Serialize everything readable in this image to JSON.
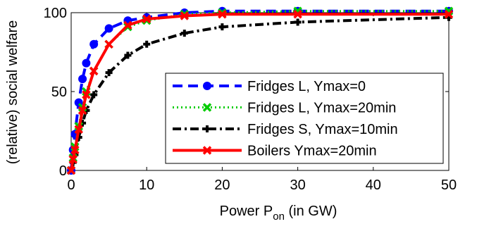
{
  "chart_data": {
    "type": "line",
    "title": "",
    "xlabel": {
      "main": "Power P",
      "subscript": "on",
      "suffix": " (in GW)"
    },
    "ylabel": "(relative) social welfare",
    "xlim": [
      0,
      50
    ],
    "ylim": [
      0,
      100
    ],
    "xticks": [
      0,
      10,
      20,
      30,
      40,
      50
    ],
    "yticks": [
      0,
      50,
      100
    ],
    "grid": false,
    "legend_position": "lower-right",
    "series": [
      {
        "name": "Fridges L, Ymax=0",
        "color": "#0000ff",
        "line_style": "dashed",
        "marker": "circle",
        "x": [
          0,
          0.25,
          0.5,
          1,
          1.5,
          2,
          3,
          5,
          7.5,
          10,
          15,
          20,
          30,
          50
        ],
        "y": [
          0,
          13,
          23,
          43,
          58,
          68,
          80,
          90,
          95,
          97,
          100,
          101,
          101,
          101
        ]
      },
      {
        "name": "Fridges L, Ymax=20min",
        "color": "#00cc00",
        "line_style": "dotted",
        "marker": "x",
        "x": [
          0,
          0.25,
          0.5,
          1,
          1.5,
          2,
          3,
          5,
          7.5,
          10,
          15,
          20,
          30,
          50
        ],
        "y": [
          0,
          8,
          15,
          28,
          40,
          50,
          63,
          80,
          91,
          95,
          99,
          100,
          101,
          101
        ]
      },
      {
        "name": "Fridges S, Ymax=10min",
        "color": "#000000",
        "line_style": "dashdot",
        "marker": "plus",
        "x": [
          0,
          0.25,
          0.5,
          1,
          1.5,
          2,
          3,
          5,
          7.5,
          10,
          15,
          20,
          30,
          50
        ],
        "y": [
          0,
          5,
          10,
          21,
          30,
          38,
          48,
          62,
          73,
          80,
          87,
          91,
          94,
          97
        ]
      },
      {
        "name": "Boilers Ymax=20min",
        "color": "#ff0000",
        "line_style": "solid",
        "marker": "x",
        "x": [
          0,
          0.25,
          0.5,
          1,
          1.5,
          2,
          3,
          5,
          7.5,
          10,
          15,
          20,
          30,
          50
        ],
        "y": [
          0,
          7,
          13,
          26,
          38,
          48,
          63,
          80,
          92,
          96,
          98,
          99,
          99,
          99
        ]
      }
    ]
  }
}
